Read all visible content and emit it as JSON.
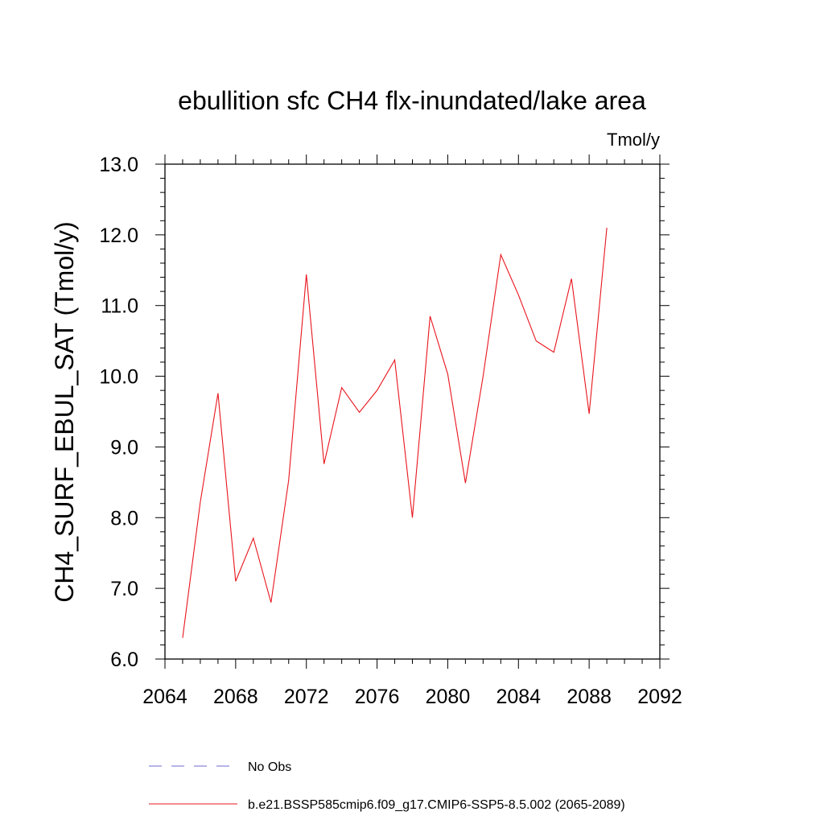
{
  "chart_data": {
    "type": "line",
    "title": "ebullition sfc CH4 flx-inundated/lake area",
    "units_label": "Tmol/y",
    "xlabel": "",
    "ylabel": "CH4_SURF_EBUL_SAT  (Tmol/y)",
    "xlim": [
      2064,
      2092
    ],
    "ylim": [
      6.0,
      13.0
    ],
    "x_ticks": [
      "2064",
      "2068",
      "2072",
      "2076",
      "2080",
      "2084",
      "2088",
      "2092"
    ],
    "y_ticks": [
      "6.0",
      "7.0",
      "8.0",
      "9.0",
      "10.0",
      "11.0",
      "12.0",
      "13.0"
    ],
    "grid": false,
    "legend_position": "bottom",
    "series": [
      {
        "name": "No Obs",
        "color": "#6a6ad0",
        "style": "dashed",
        "x": [],
        "values": []
      },
      {
        "name": "b.e21.BSSP585cmip6.f09_g17.CMIP6-SSP5-8.5.002 (2065-2089)",
        "color": "#e8141c",
        "style": "solid",
        "x": [
          2065,
          2066,
          2067,
          2068,
          2069,
          2070,
          2071,
          2072,
          2073,
          2074,
          2075,
          2076,
          2077,
          2078,
          2079,
          2080,
          2081,
          2082,
          2083,
          2084,
          2085,
          2086,
          2087,
          2088,
          2089
        ],
        "values": [
          6.3,
          8.22,
          9.76,
          7.1,
          7.71,
          6.8,
          8.53,
          11.44,
          8.76,
          9.84,
          9.49,
          9.8,
          10.23,
          8.0,
          10.85,
          10.03,
          8.49,
          10.0,
          11.72,
          11.15,
          10.5,
          10.34,
          11.38,
          9.47,
          12.1
        ]
      }
    ]
  }
}
